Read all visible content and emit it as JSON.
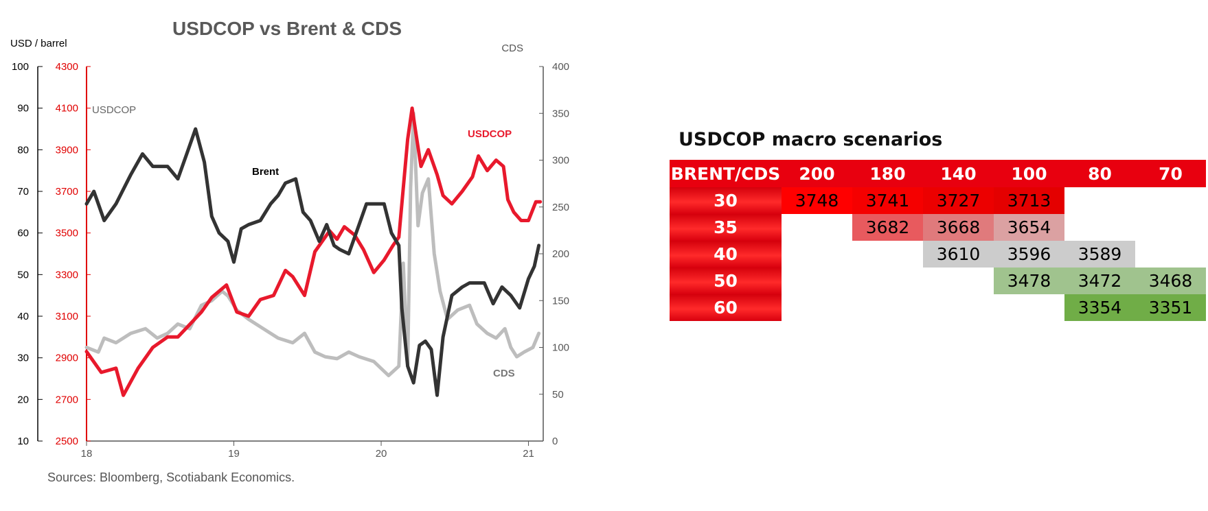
{
  "chart_data": {
    "type": "line",
    "title": "USDCOP vs Brent & CDS",
    "left_outer_axis": {
      "label": "USD / barrel",
      "min": 10,
      "max": 100,
      "ticks": [
        "100",
        "90",
        "80",
        "70",
        "60",
        "50",
        "40",
        "30",
        "20",
        "10"
      ]
    },
    "left_inner_axis": {
      "min": 2500,
      "max": 4300,
      "color": "#e00000",
      "ticks": [
        "4300",
        "4100",
        "3900",
        "3700",
        "3500",
        "3300",
        "3100",
        "2900",
        "2700",
        "2500"
      ]
    },
    "right_axis": {
      "label": "CDS",
      "min": 0,
      "max": 400,
      "ticks": [
        "400",
        "350",
        "300",
        "250",
        "200",
        "150",
        "100",
        "50",
        "0"
      ]
    },
    "x_axis": {
      "min": 18,
      "max": 21.1,
      "ticks": [
        "18",
        "19",
        "20",
        "21"
      ]
    },
    "annotations": {
      "usdcop_left": "USDCOP",
      "usdcop_right": "USDCOP",
      "brent": "Brent",
      "cds": "CDS"
    },
    "colors": {
      "usdcop": "#e8192c",
      "brent": "#333333",
      "cds": "#bdbdbd"
    },
    "series": [
      {
        "name": "USDCOP",
        "axis": "left_inner",
        "x": [
          18.0,
          18.1,
          18.2,
          18.25,
          18.35,
          18.45,
          18.55,
          18.62,
          18.7,
          18.78,
          18.85,
          18.95,
          19.02,
          19.1,
          19.18,
          19.27,
          19.35,
          19.4,
          19.48,
          19.55,
          19.6,
          19.65,
          19.7,
          19.75,
          19.82,
          19.88,
          19.95,
          20.02,
          20.08,
          20.12,
          20.18,
          20.21,
          20.24,
          20.27,
          20.32,
          20.38,
          20.42,
          20.48,
          20.55,
          20.62,
          20.66,
          20.72,
          20.78,
          20.83,
          20.86,
          20.9,
          20.95,
          21.0,
          21.05,
          21.08
        ],
        "y": [
          2930,
          2830,
          2850,
          2720,
          2850,
          2950,
          3000,
          3000,
          3060,
          3120,
          3190,
          3250,
          3120,
          3100,
          3180,
          3200,
          3320,
          3290,
          3200,
          3410,
          3460,
          3510,
          3470,
          3530,
          3490,
          3420,
          3310,
          3370,
          3440,
          3480,
          3950,
          4100,
          3960,
          3820,
          3900,
          3780,
          3680,
          3640,
          3700,
          3770,
          3870,
          3800,
          3850,
          3820,
          3660,
          3600,
          3560,
          3560,
          3650,
          3650
        ]
      },
      {
        "name": "Brent",
        "axis": "left_outer",
        "x": [
          18.0,
          18.05,
          18.12,
          18.2,
          18.3,
          18.38,
          18.45,
          18.55,
          18.62,
          18.68,
          18.74,
          18.8,
          18.85,
          18.9,
          18.96,
          19.0,
          19.05,
          19.1,
          19.18,
          19.25,
          19.3,
          19.35,
          19.42,
          19.47,
          19.52,
          19.58,
          19.63,
          19.68,
          19.72,
          19.78,
          19.85,
          19.9,
          19.96,
          20.02,
          20.07,
          20.12,
          20.14,
          20.18,
          20.22,
          20.26,
          20.3,
          20.34,
          20.38,
          20.42,
          20.48,
          20.55,
          20.6,
          20.65,
          20.7,
          20.76,
          20.82,
          20.88,
          20.94,
          21.0,
          21.04,
          21.07
        ],
        "y": [
          67,
          70,
          63,
          67,
          74,
          79,
          76,
          76,
          73,
          79,
          85,
          77,
          64,
          60,
          58,
          53,
          61,
          62,
          63,
          67,
          69,
          72,
          73,
          65,
          63,
          58,
          62,
          57,
          56,
          55,
          62,
          67,
          67,
          67,
          60,
          57,
          42,
          28,
          24,
          33,
          34,
          32,
          21,
          35,
          45,
          47,
          48,
          48,
          48,
          43,
          47,
          45,
          42,
          49,
          52,
          57
        ]
      },
      {
        "name": "CDS",
        "axis": "right",
        "x": [
          18.0,
          18.08,
          18.12,
          18.2,
          18.3,
          18.4,
          18.48,
          18.55,
          18.62,
          18.7,
          18.78,
          18.85,
          18.92,
          18.96,
          19.02,
          19.1,
          19.2,
          19.3,
          19.4,
          19.48,
          19.55,
          19.62,
          19.7,
          19.78,
          19.85,
          19.95,
          20.05,
          20.12,
          20.15,
          20.18,
          20.2,
          20.22,
          20.25,
          20.28,
          20.32,
          20.36,
          20.4,
          20.45,
          20.52,
          20.6,
          20.65,
          20.72,
          20.78,
          20.84,
          20.88,
          20.92,
          20.97,
          21.03,
          21.07
        ],
        "y": [
          100,
          95,
          110,
          105,
          115,
          120,
          110,
          115,
          125,
          120,
          145,
          150,
          160,
          155,
          140,
          130,
          120,
          110,
          105,
          115,
          95,
          90,
          88,
          95,
          90,
          85,
          70,
          80,
          190,
          80,
          270,
          350,
          230,
          265,
          280,
          200,
          160,
          130,
          140,
          145,
          125,
          115,
          110,
          120,
          100,
          90,
          95,
          100,
          115
        ]
      }
    ]
  },
  "scenarios": {
    "title": "USDCOP macro scenarios",
    "corner": "BRENT/CDS",
    "columns": [
      "200",
      "180",
      "140",
      "100",
      "80",
      "70"
    ],
    "rows": [
      {
        "label": "30",
        "values": [
          "3748",
          "3741",
          "3727",
          "3713",
          "",
          ""
        ]
      },
      {
        "label": "35",
        "values": [
          "",
          "3682",
          "3668",
          "3654",
          "",
          ""
        ]
      },
      {
        "label": "40",
        "values": [
          "",
          "",
          "3610",
          "3596",
          "3589",
          ""
        ]
      },
      {
        "label": "50",
        "values": [
          "",
          "",
          "",
          "3478",
          "3472",
          "3468"
        ]
      },
      {
        "label": "60",
        "values": [
          "",
          "",
          "",
          "",
          "3354",
          "3351"
        ]
      }
    ],
    "cell_colors": [
      [
        "#ff0000",
        "#f50000",
        "#ec0000",
        "#e40000",
        "",
        ""
      ],
      [
        "",
        "#e85a5e",
        "#e07a7c",
        "#dba1a2",
        "",
        ""
      ],
      [
        "",
        "",
        "#cccccc",
        "#cccccc",
        "#cccccc",
        ""
      ],
      [
        "",
        "",
        "",
        "#a0c38e",
        "#a0c38e",
        "#a0c38e"
      ],
      [
        "",
        "",
        "",
        "",
        "#70ad47",
        "#70ad47"
      ]
    ]
  },
  "source": "Sources: Bloomberg, Scotiabank Economics."
}
